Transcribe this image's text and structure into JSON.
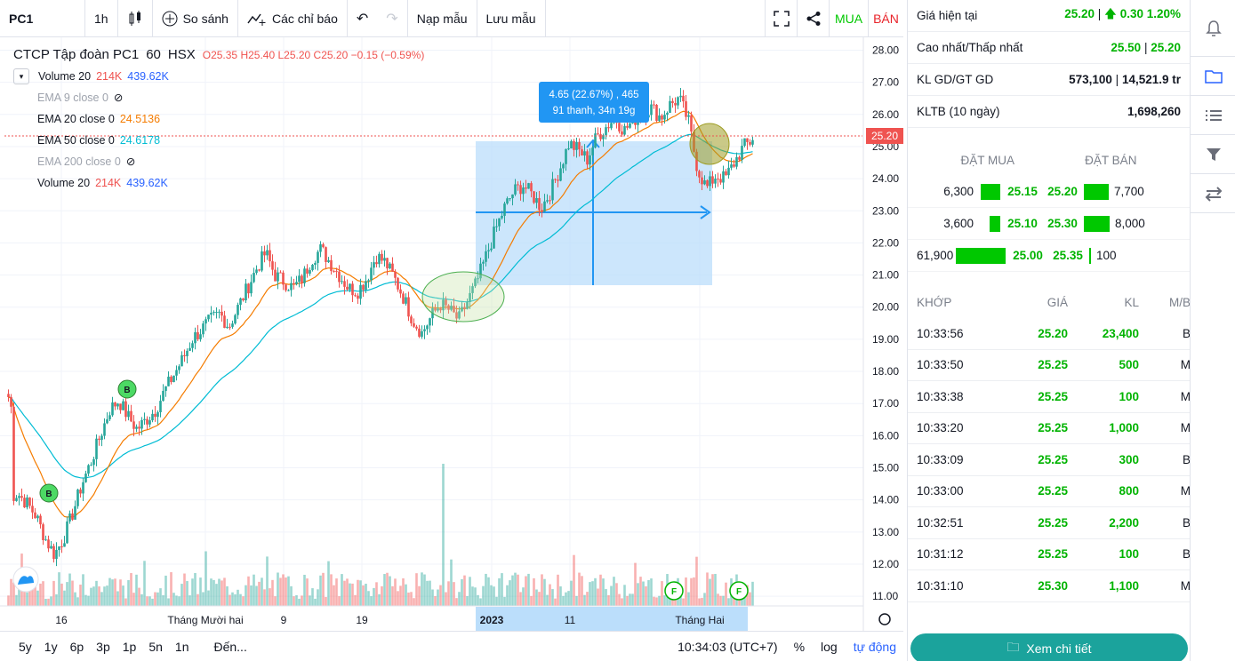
{
  "toolbar": {
    "symbol": "PC1",
    "interval": "1h",
    "compare_label": "So sánh",
    "indicators_label": "Các chỉ báo",
    "load_template_label": "Nạp mẫu",
    "save_template_label": "Lưu mẫu",
    "buy_label": "MUA",
    "sell_label": "BÁN"
  },
  "legend": {
    "name": "CTCP Tập đoàn PC1",
    "interval": "60",
    "exchange": "HSX",
    "open": "O25.35",
    "high": "H25.40",
    "low": "L25.20",
    "close": "C25.20",
    "change": "−0.15 (−0.59%)",
    "rows": [
      {
        "label": "Volume 20",
        "v1": "214K",
        "v2": "439.62K"
      },
      {
        "label": "EMA 9 close 0",
        "hidden": true
      },
      {
        "label": "EMA 20 close 0",
        "value": "24.5136"
      },
      {
        "label": "EMA 50 close 0",
        "value": "24.6178"
      },
      {
        "label": "EMA 200 close 0",
        "hidden": true
      },
      {
        "label": "Volume 20",
        "v1": "214K",
        "v2": "439.62K"
      }
    ]
  },
  "measure_tooltip": {
    "line1": "4.65 (22.67%) , 465",
    "line2": "91 thanh, 34n 19g"
  },
  "last_price_tag": "25.20",
  "chart_data": {
    "type": "candlestick",
    "y_axis_ticks": [
      "28.00",
      "27.00",
      "26.00",
      "25.00",
      "24.00",
      "23.00",
      "22.00",
      "21.00",
      "20.00",
      "19.00",
      "18.00",
      "17.00",
      "16.00",
      "15.00",
      "14.00",
      "13.00",
      "12.00",
      "11.00"
    ],
    "x_axis_ticks": [
      "16",
      "Tháng Mười hai",
      "9",
      "19",
      "2023",
      "11",
      "Tháng Hai"
    ],
    "ylim": [
      10.7,
      28.4
    ],
    "close_path": [
      14.1,
      14.2,
      13.9,
      13.5,
      12.8,
      12.3,
      12.8,
      13.6,
      14.5,
      15.2,
      16.0,
      16.8,
      17.1,
      16.6,
      16.2,
      16.5,
      16.8,
      17.4,
      17.9,
      18.4,
      19.0,
      19.3,
      19.6,
      19.8,
      19.4,
      20.0,
      20.6,
      21.2,
      21.7,
      21.0,
      20.8,
      20.6,
      20.9,
      21.5,
      21.8,
      21.4,
      21.0,
      20.6,
      20.5,
      20.9,
      21.6,
      21.4,
      20.9,
      20.3,
      19.6,
      19.2,
      19.7,
      20.1,
      19.9,
      19.6,
      20.2,
      20.8,
      21.6,
      22.4,
      23.1,
      23.6,
      23.8,
      23.5,
      23.1,
      23.6,
      24.3,
      25.1,
      24.9,
      24.6,
      25.3,
      25.6,
      25.9,
      25.5,
      25.8,
      26.1,
      26.2,
      25.9,
      26.3,
      26.5,
      25.8,
      24.3,
      23.7,
      24.1,
      24.0,
      24.5,
      25.0,
      25.2
    ]
  },
  "markers": [
    {
      "label": "B"
    },
    {
      "label": "B"
    },
    {
      "label": "F"
    },
    {
      "label": "F"
    }
  ],
  "bottom": {
    "ranges": [
      "5y",
      "1y",
      "6p",
      "3p",
      "1p",
      "5n",
      "1n"
    ],
    "goto": "Đến...",
    "clock": "10:34:03 (UTC+7)",
    "percent": "%",
    "log": "log",
    "auto": "tự động"
  },
  "panel": {
    "current_price_label": "Giá hiện tại",
    "current_price": "25.20",
    "current_change": "0.30 1.20%",
    "high_low_label": "Cao nhất/Thấp nhất",
    "high": "25.50",
    "low": "25.20",
    "volume_label": "KL GD/GT GD",
    "volume": "573,100",
    "value": "14,521.9 tr",
    "avg_label": "KLTB (10 ngày)",
    "avg_value": "1,698,260",
    "bid_header": "ĐẶT MUA",
    "ask_header": "ĐẶT BÁN",
    "orderbook": [
      {
        "bid_vol": "6,300",
        "bid": "25.15",
        "ask": "25.20",
        "ask_vol": "7,700"
      },
      {
        "bid_vol": "3,600",
        "bid": "25.10",
        "ask": "25.30",
        "ask_vol": "8,000"
      },
      {
        "bid_vol": "61,900",
        "bid": "25.00",
        "ask": "25.35",
        "ask_vol": "100"
      }
    ],
    "trades_headers": [
      "KHỚP",
      "GIÁ",
      "KL",
      "M/B"
    ],
    "trades": [
      {
        "time": "10:33:56",
        "price": "25.20",
        "vol": "23,400",
        "side": "B"
      },
      {
        "time": "10:33:50",
        "price": "25.25",
        "vol": "500",
        "side": "M"
      },
      {
        "time": "10:33:38",
        "price": "25.25",
        "vol": "100",
        "side": "M"
      },
      {
        "time": "10:33:20",
        "price": "25.25",
        "vol": "1,000",
        "side": "M"
      },
      {
        "time": "10:33:09",
        "price": "25.25",
        "vol": "300",
        "side": "B"
      },
      {
        "time": "10:33:00",
        "price": "25.25",
        "vol": "800",
        "side": "M"
      },
      {
        "time": "10:32:51",
        "price": "25.25",
        "vol": "2,200",
        "side": "B"
      },
      {
        "time": "10:31:12",
        "price": "25.25",
        "vol": "100",
        "side": "B"
      },
      {
        "time": "10:31:10",
        "price": "25.30",
        "vol": "1,100",
        "side": "M"
      }
    ],
    "detail_button": "Xem chi tiết"
  }
}
